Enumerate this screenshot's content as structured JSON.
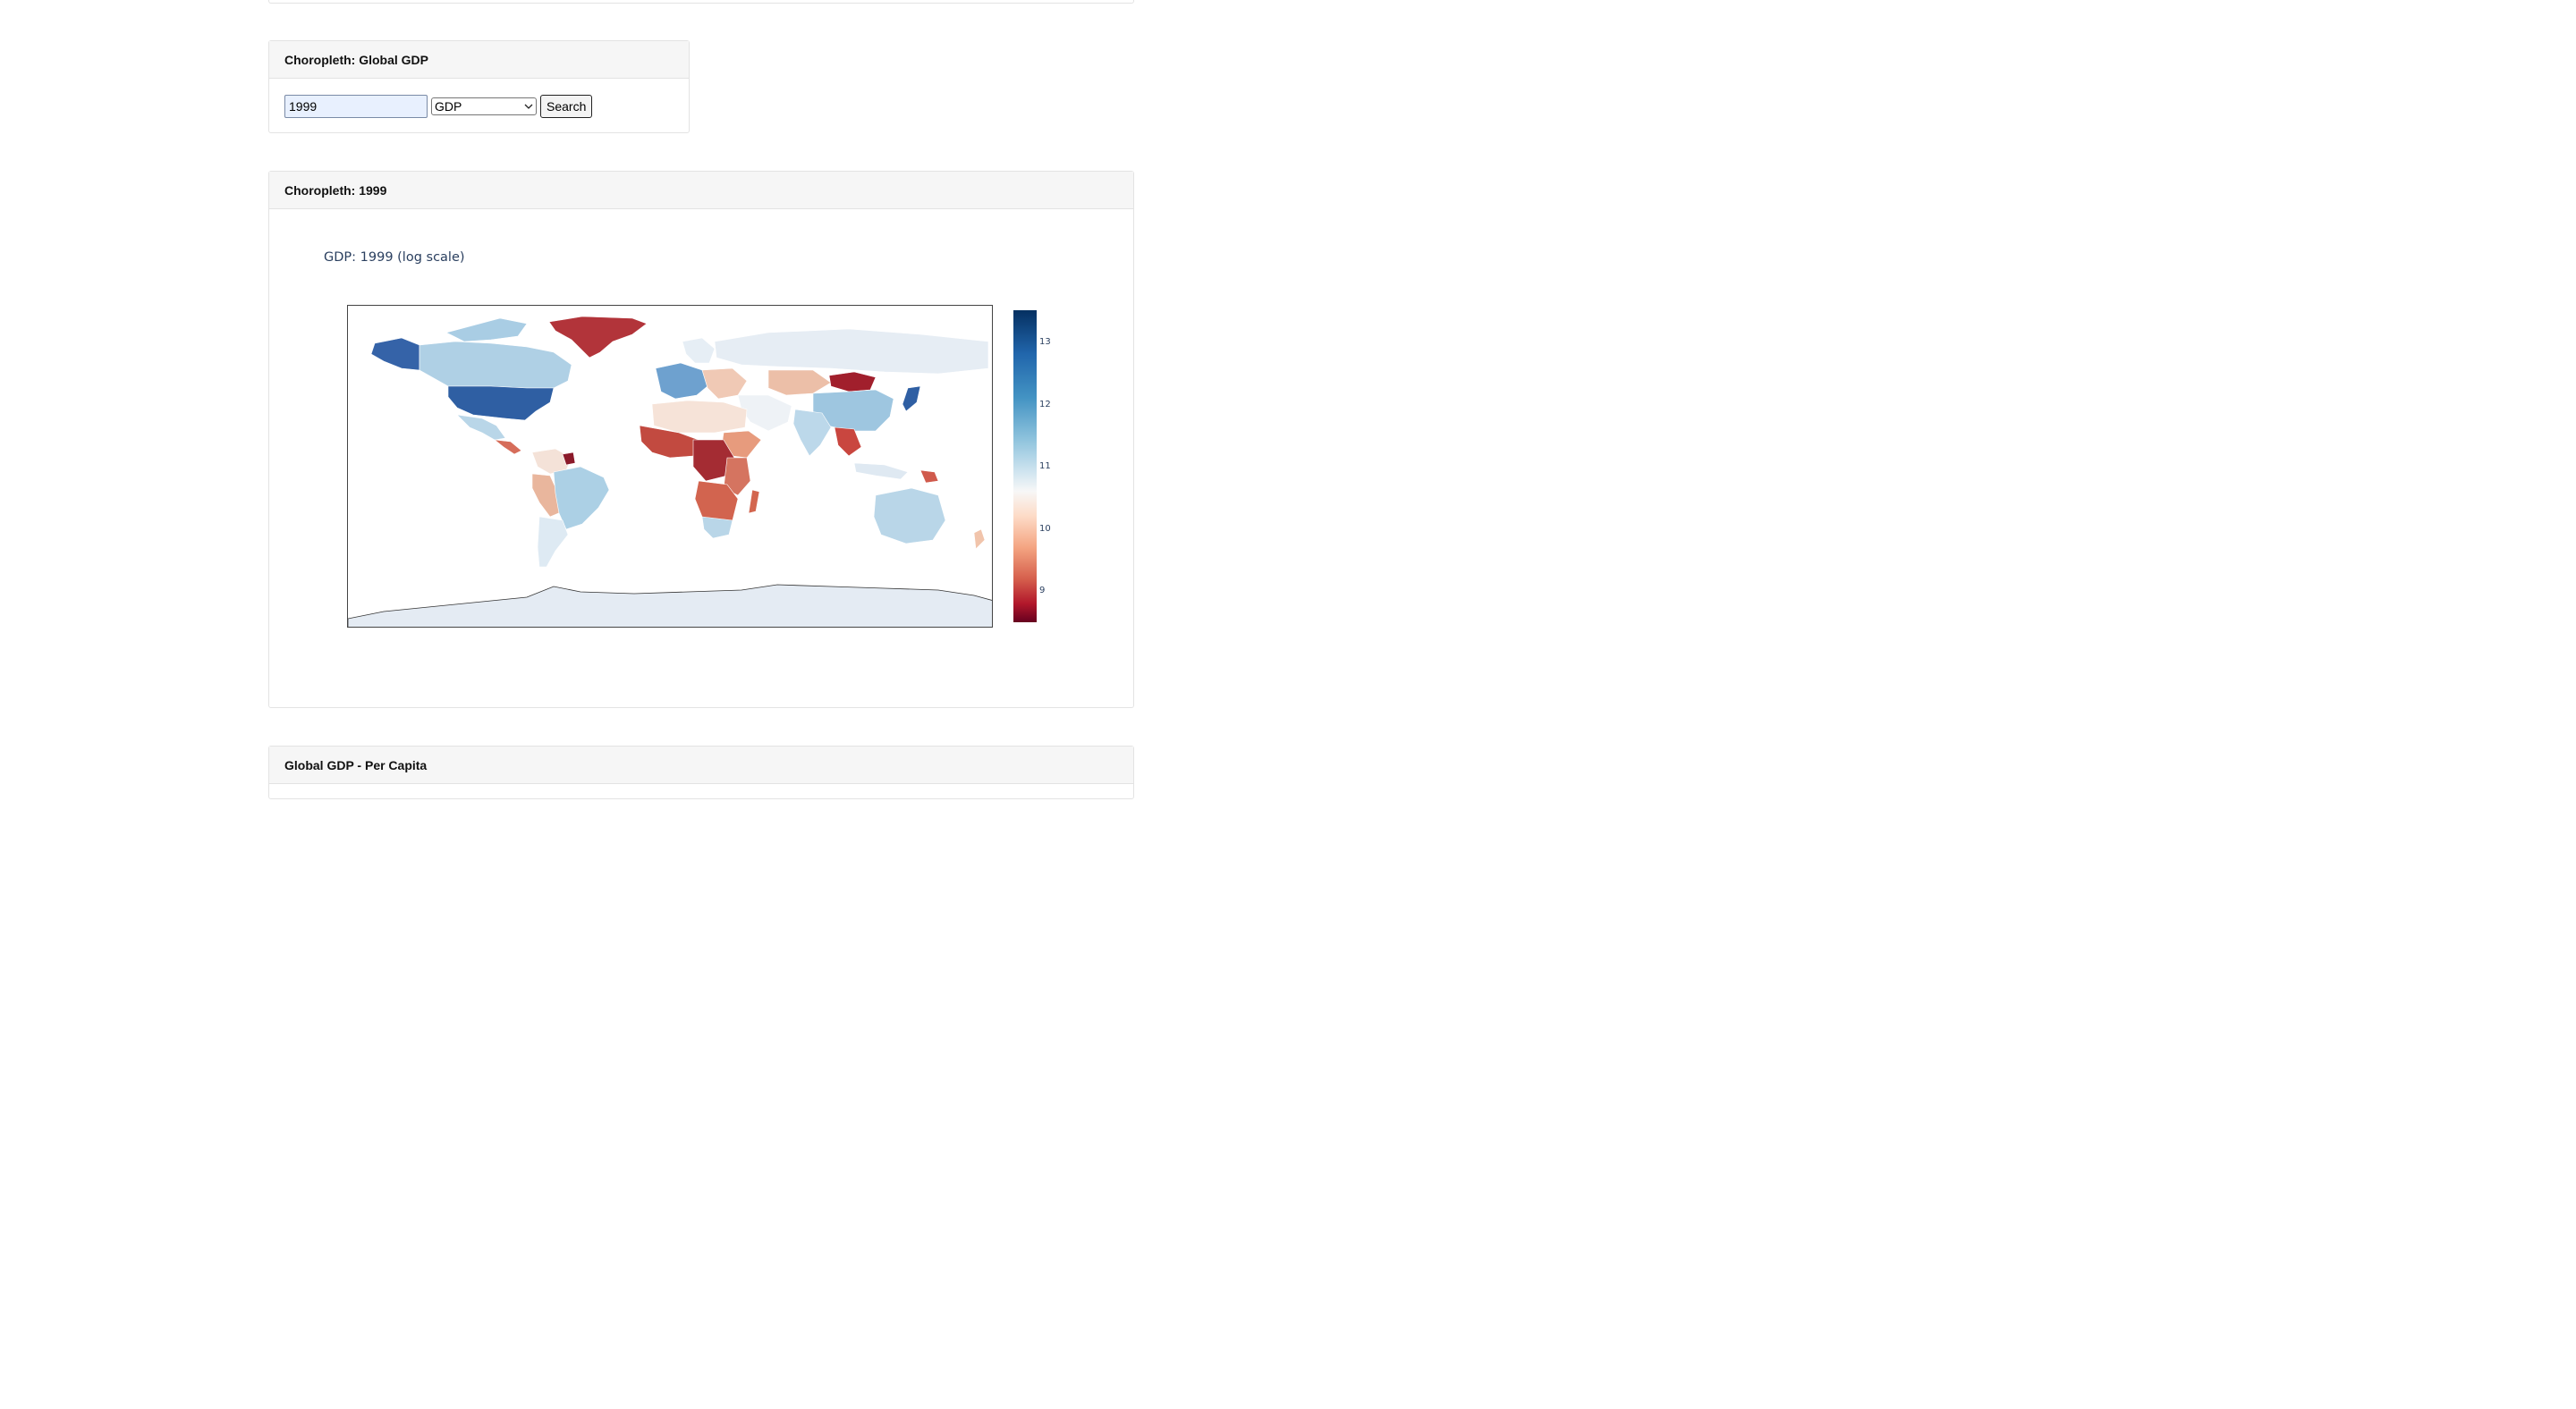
{
  "search_card": {
    "header": "Choropleth: Global GDP",
    "year_value": "1999",
    "metric_selected": "GDP",
    "search_label": "Search"
  },
  "map_card": {
    "header": "Choropleth: 1999",
    "chart_title": "GDP: 1999 (log scale)"
  },
  "percap_card": {
    "header": "Global GDP - Per Capita"
  },
  "chart_data": {
    "type": "choropleth",
    "title": "GDP: 1999 (log scale)",
    "colorscale": "RdBu",
    "colorbar_ticks": [
      "13",
      "12",
      "11",
      "10",
      "9"
    ],
    "colorbar_range": [
      8.6,
      13.5
    ],
    "colors": {
      "high": "#053061",
      "mid": "#f7f7f7",
      "low": "#67001f"
    }
  }
}
